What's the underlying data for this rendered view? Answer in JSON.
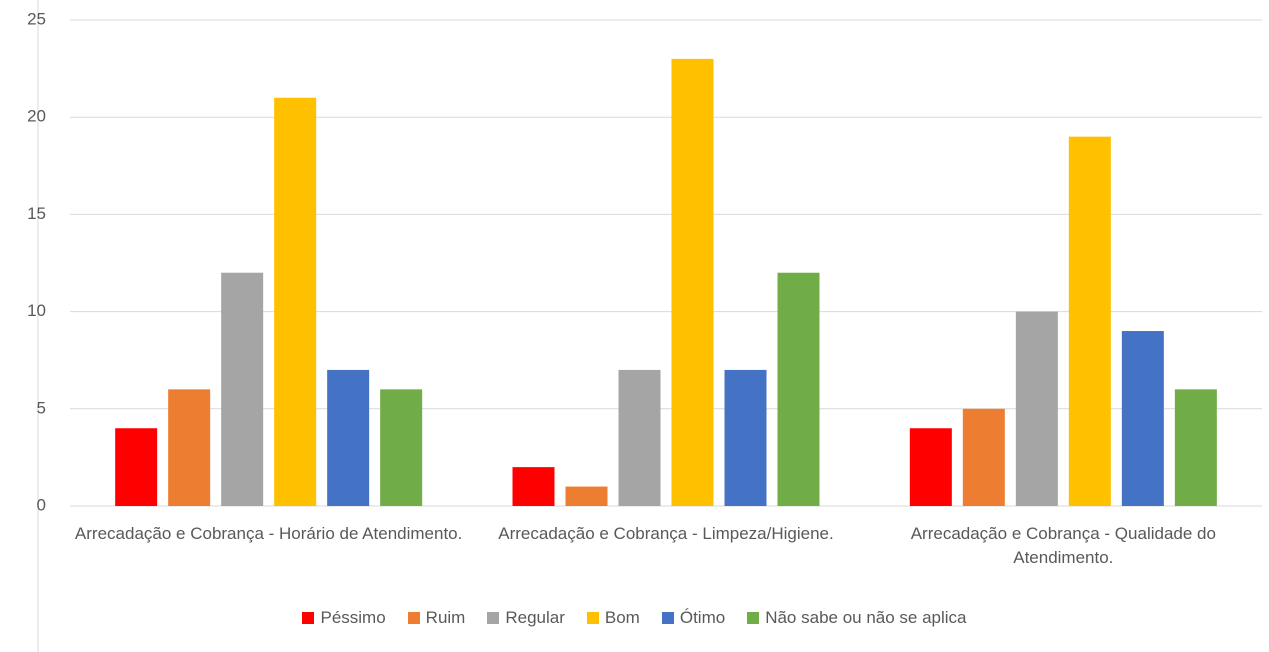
{
  "chart_data": {
    "type": "bar",
    "categories": [
      "Arrecadação e Cobrança - Horário de Atendimento.",
      "Arrecadação e Cobrança - Limpeza/Higiene.",
      "Arrecadação e Cobrança - Qualidade do Atendimento."
    ],
    "series": [
      {
        "name": "Péssimo",
        "color": "#ff0000",
        "values": [
          4,
          2,
          4
        ]
      },
      {
        "name": "Ruim",
        "color": "#ed7d31",
        "values": [
          6,
          1,
          5
        ]
      },
      {
        "name": "Regular",
        "color": "#a5a5a5",
        "values": [
          12,
          7,
          10
        ]
      },
      {
        "name": "Bom",
        "color": "#ffc000",
        "values": [
          21,
          23,
          19
        ]
      },
      {
        "name": "Ótimo",
        "color": "#4472c4",
        "values": [
          7,
          7,
          9
        ]
      },
      {
        "name": "Não sabe ou não se aplica",
        "color": "#70ad47",
        "values": [
          6,
          12,
          6
        ]
      }
    ],
    "ylim": [
      0,
      25
    ],
    "yticks": [
      0,
      5,
      10,
      15,
      20,
      25
    ],
    "grid": true,
    "legend": "bottom"
  }
}
